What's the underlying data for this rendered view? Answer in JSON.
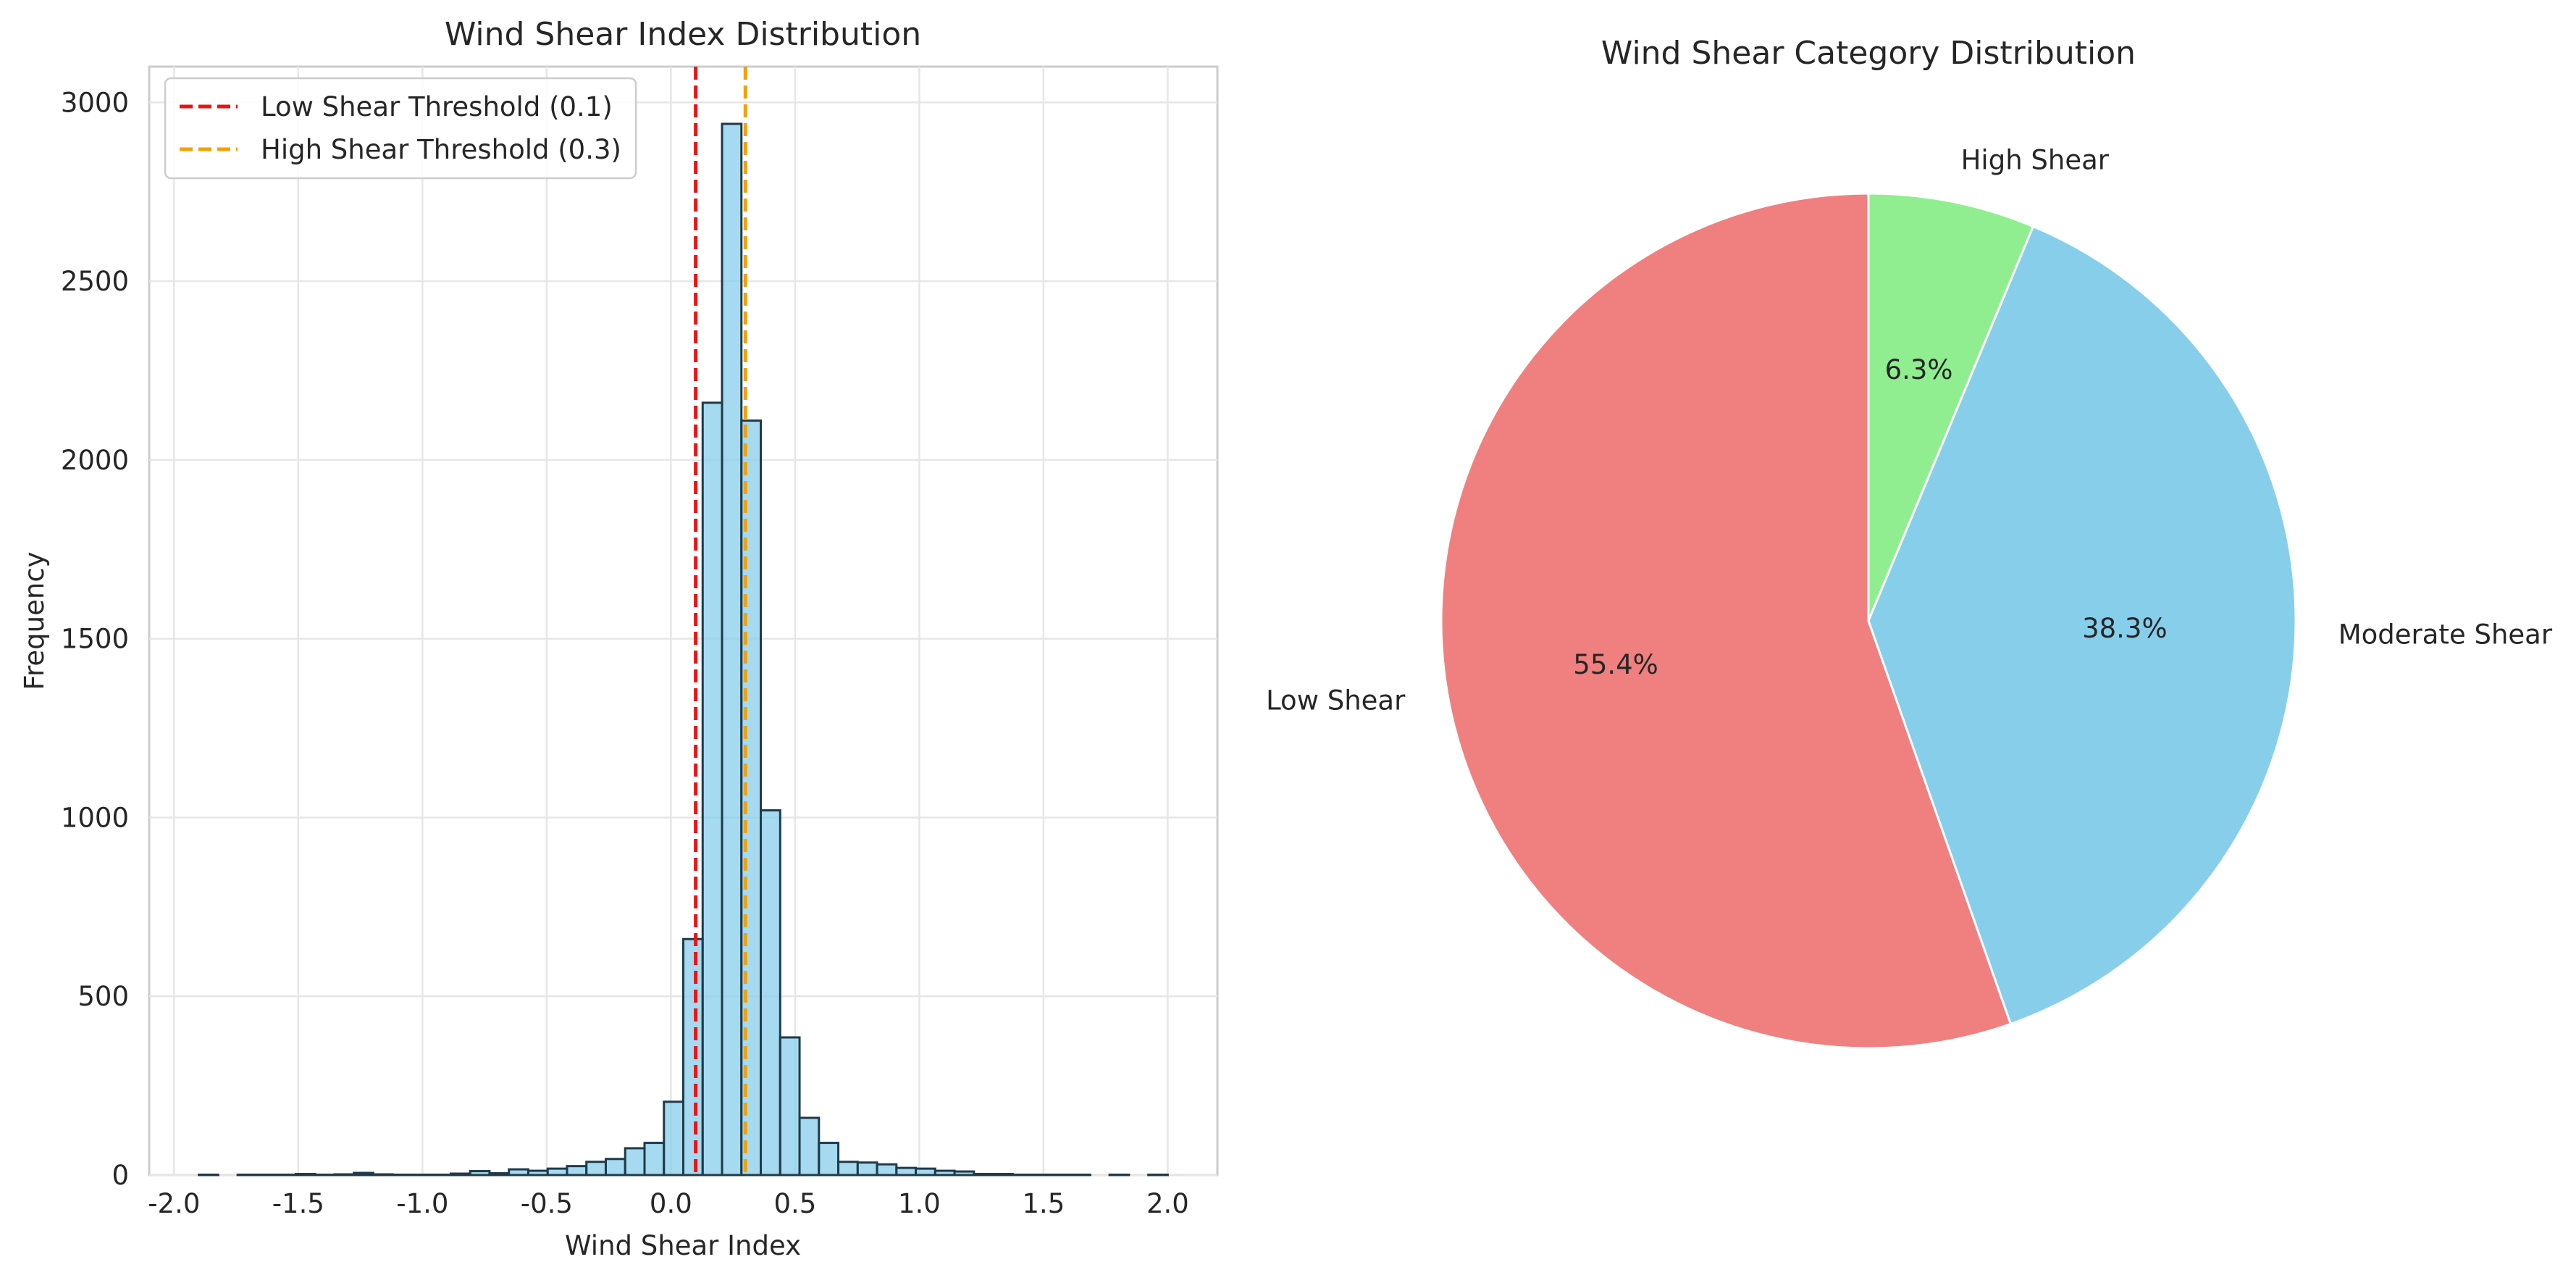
{
  "chart_data": [
    {
      "type": "bar",
      "title": "Wind Shear Index Distribution",
      "xlabel": "Wind Shear Index",
      "ylabel": "Frequency",
      "xlim": [
        -2.1,
        2.2
      ],
      "ylim": [
        0,
        3100
      ],
      "xticks": [
        -2.0,
        -1.5,
        -1.0,
        -0.5,
        0.0,
        0.5,
        1.0,
        1.5,
        2.0
      ],
      "xtick_labels": [
        "-2.0",
        "-1.5",
        "-1.0",
        "-0.5",
        "0.0",
        "0.5",
        "1.0",
        "1.5",
        "2.0"
      ],
      "yticks": [
        0,
        500,
        1000,
        1500,
        2000,
        2500,
        3000
      ],
      "ytick_labels": [
        "0",
        "500",
        "1000",
        "1500",
        "2000",
        "2500",
        "3000"
      ],
      "grid": true,
      "bins": {
        "x_start": -1.9,
        "bin_width": 0.078,
        "counts": [
          1,
          0,
          1,
          1,
          1,
          3,
          1,
          2,
          6,
          2,
          1,
          1,
          1,
          4,
          11,
          5,
          16,
          12,
          18,
          25,
          37,
          45,
          75,
          90,
          205,
          660,
          2160,
          2940,
          2110,
          1020,
          385,
          160,
          90,
          37,
          35,
          30,
          20,
          18,
          12,
          10,
          3,
          3,
          1,
          1,
          1,
          1,
          0,
          1,
          0,
          1
        ]
      },
      "bar_color": "#87ceeb",
      "edge_color": "#1f3a4a",
      "threshold_lines": [
        {
          "name": "Low Shear Threshold (0.1)",
          "x": 0.1,
          "color": "#ee1111"
        },
        {
          "name": "High Shear Threshold (0.3)",
          "x": 0.3,
          "color": "#f5a000"
        }
      ],
      "legend_position": "upper-left"
    },
    {
      "type": "pie",
      "title": "Wind Shear Category Distribution",
      "slices": [
        {
          "label": "High Shear",
          "value": 6.3,
          "pct_label": "6.3%",
          "color": "#90ee90"
        },
        {
          "label": "Moderate Shear",
          "value": 38.3,
          "pct_label": "38.3%",
          "color": "#87ceeb"
        },
        {
          "label": "Low Shear",
          "value": 55.4,
          "pct_label": "55.4%",
          "color": "#f08080"
        }
      ],
      "start_angle": 90,
      "direction": "clockwise"
    }
  ]
}
